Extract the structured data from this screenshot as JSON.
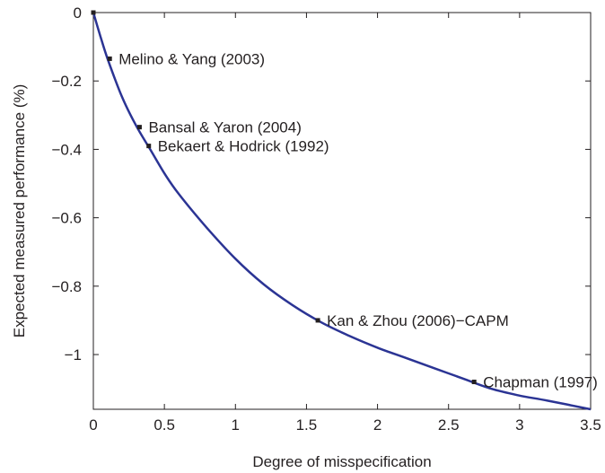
{
  "chart_data": {
    "type": "line",
    "title": "",
    "xlabel": "Degree of misspecification",
    "ylabel": "Expected measured performance (%)",
    "xlim": [
      0,
      3.5
    ],
    "ylim": [
      -1.16,
      0
    ],
    "x_ticks": [
      0,
      0.5,
      1,
      1.5,
      2,
      2.5,
      3,
      3.5
    ],
    "x_tick_labels": [
      "0",
      "0.5",
      "1",
      "1.5",
      "2",
      "2.5",
      "3",
      "3.5"
    ],
    "y_ticks": [
      0,
      -0.2,
      -0.4,
      -0.6,
      -0.8,
      -1
    ],
    "y_tick_labels": [
      "0",
      "−0.2",
      "−0.4",
      "−0.6",
      "−0.8",
      "−1"
    ],
    "grid": false,
    "colors": {
      "line": "#2b3494",
      "axis": "#231f20",
      "marker": "#231f20"
    },
    "series": [
      {
        "x": [
          0,
          0.05,
          0.1,
          0.2,
          0.3,
          0.4,
          0.5,
          0.6,
          0.8,
          1.0,
          1.2,
          1.4,
          1.6,
          1.8,
          2.0,
          2.2,
          2.4,
          2.6,
          2.8,
          3.0,
          3.2,
          3.5
        ],
        "y": [
          0,
          -0.07,
          -0.135,
          -0.245,
          -0.33,
          -0.4,
          -0.47,
          -0.53,
          -0.63,
          -0.72,
          -0.795,
          -0.855,
          -0.905,
          -0.945,
          -0.98,
          -1.01,
          -1.04,
          -1.07,
          -1.1,
          -1.12,
          -1.135,
          -1.16
        ]
      }
    ],
    "annotations": [
      {
        "label": "Melino & Yang (2003)",
        "x": 0.115,
        "y": -0.135
      },
      {
        "label": "Bansal & Yaron (2004)",
        "x": 0.325,
        "y": -0.335
      },
      {
        "label": "Bekaert & Hodrick (1992)",
        "x": 0.39,
        "y": -0.39
      },
      {
        "label": "Kan & Zhou (2006)−CAPM",
        "x": 1.58,
        "y": -0.9
      },
      {
        "label": "Chapman (1997)",
        "x": 2.68,
        "y": -1.08
      }
    ],
    "origin_marker": {
      "x": 0,
      "y": 0
    }
  }
}
